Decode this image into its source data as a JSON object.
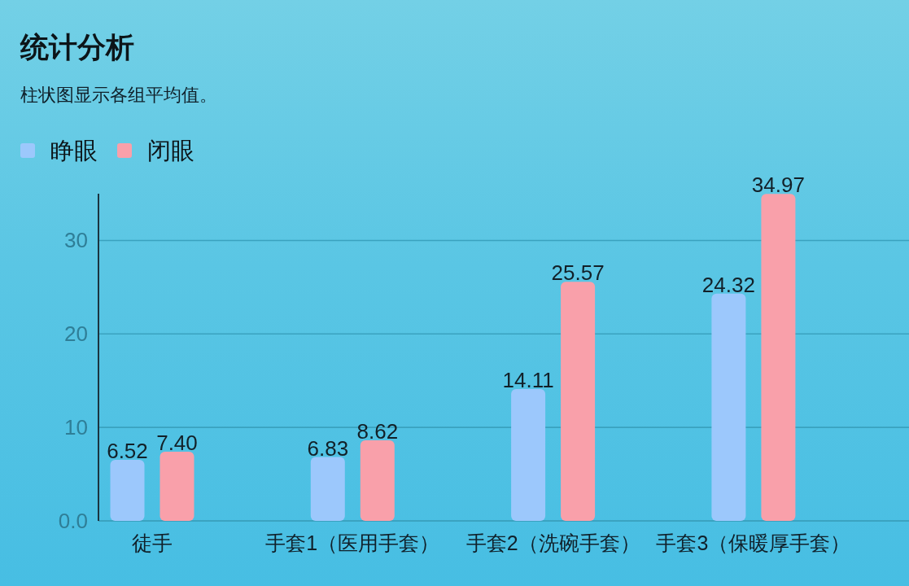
{
  "chart_data": {
    "type": "bar",
    "title": "统计分析",
    "subtitle": "柱状图显示各组平均值。",
    "categories": [
      "徒手",
      "手套1（医用手套）",
      "手套2（洗碗手套）",
      "手套3（保暖厚手套）"
    ],
    "series": [
      {
        "name": "睁眼",
        "color": "#9cc8fc",
        "values": [
          6.52,
          6.83,
          14.11,
          24.32
        ],
        "value_labels": [
          "6.52",
          "6.83",
          "14.11",
          "24.32"
        ]
      },
      {
        "name": "闭眼",
        "color": "#f9a0aa",
        "values": [
          7.4,
          8.62,
          25.57,
          34.97
        ],
        "value_labels": [
          "7.40",
          "8.62",
          "25.57",
          "34.97"
        ]
      }
    ],
    "ylim": [
      0,
      35
    ],
    "yticks": [
      {
        "value": 0,
        "label": "0.0"
      },
      10,
      20,
      30
    ],
    "grid": "y",
    "legend": "top left"
  }
}
